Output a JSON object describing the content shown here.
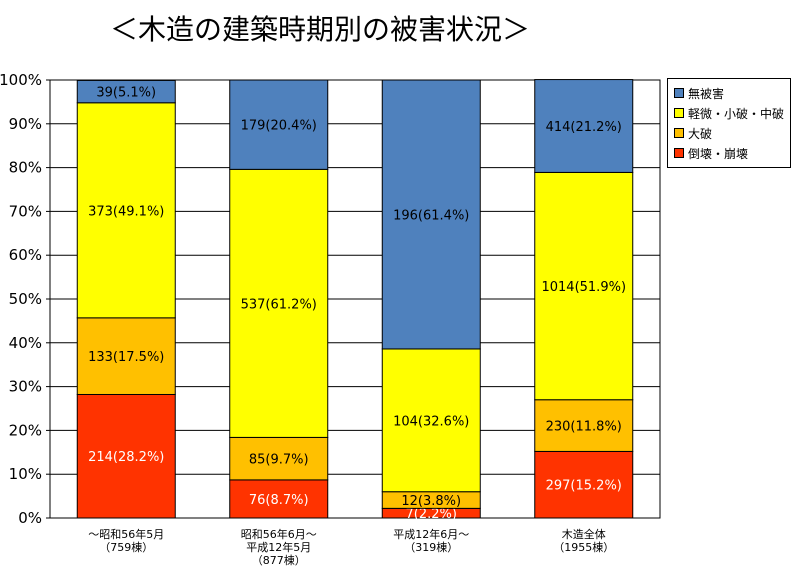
{
  "title": "＜木造の建築時期別の被害状況＞",
  "chart_data": {
    "type": "bar",
    "stacked": true,
    "percent_stacked": true,
    "ylim": [
      0,
      100
    ],
    "yticks": [
      "0%",
      "10%",
      "20%",
      "30%",
      "40%",
      "50%",
      "60%",
      "70%",
      "80%",
      "90%",
      "100%"
    ],
    "grid": true,
    "legend_position": "right",
    "categories": [
      [
        "～昭和56年5月",
        "（759棟）"
      ],
      [
        "昭和56年6月～",
        "平成12年5月",
        "（877棟）"
      ],
      [
        "平成12年6月～",
        "（319棟）"
      ],
      [
        "木造全体",
        "（1955棟）"
      ]
    ],
    "series": [
      {
        "name": "倒壊・崩壊",
        "color": "#ff3300",
        "label_color": "#ffffff",
        "values": [
          28.2,
          8.7,
          2.2,
          15.2
        ],
        "labels": [
          "214(28.2%)",
          "76(8.7%)",
          "7(2.2%)",
          "297(15.2%)"
        ]
      },
      {
        "name": "大破",
        "color": "#ffc000",
        "label_color": "#000000",
        "values": [
          17.5,
          9.7,
          3.8,
          11.8
        ],
        "labels": [
          "133(17.5%)",
          "85(9.7%)",
          "12(3.8%)",
          "230(11.8%)"
        ]
      },
      {
        "name": "軽微・小破・中破",
        "color": "#ffff00",
        "label_color": "#000000",
        "values": [
          49.1,
          61.2,
          32.6,
          51.9
        ],
        "labels": [
          "373(49.1%)",
          "537(61.2%)",
          "104(32.6%)",
          "1014(51.9%)"
        ]
      },
      {
        "name": "無被害",
        "color": "#4f81bd",
        "label_color": "#000000",
        "values": [
          5.1,
          20.4,
          61.4,
          21.2
        ],
        "labels": [
          "39(5.1%)",
          "179(20.4%)",
          "196(61.4%)",
          "414(21.2%)"
        ]
      }
    ],
    "legend_order": [
      "無被害",
      "軽微・小破・中破",
      "大破",
      "倒壊・崩壊"
    ]
  }
}
